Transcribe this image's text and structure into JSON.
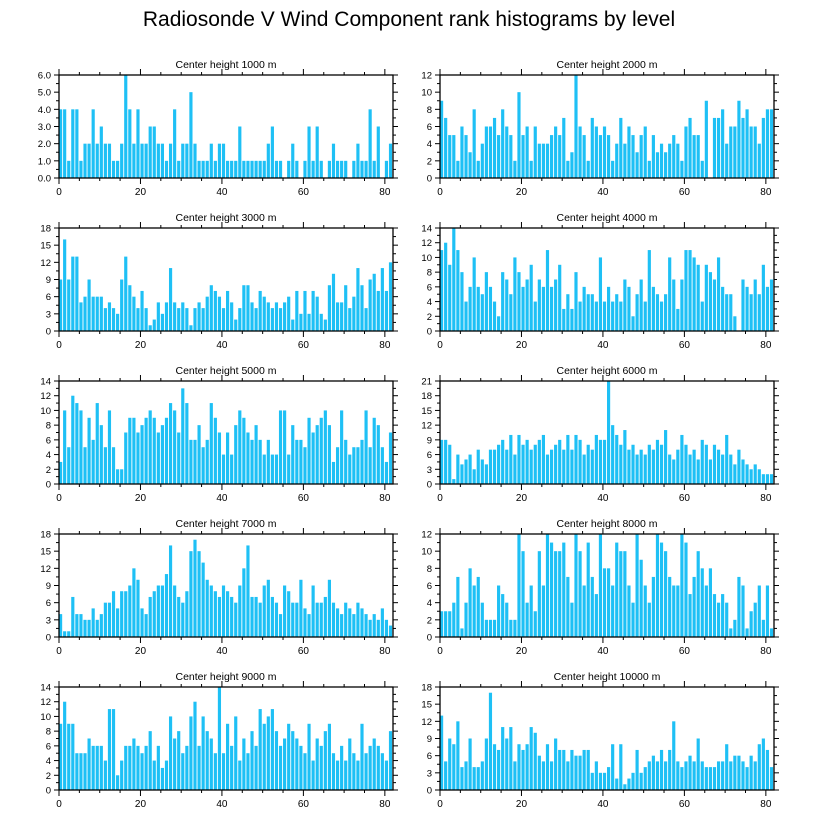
{
  "figure": {
    "title": "Radiosonde V Wind Component rank histograms by level",
    "bar_color": "#1ec0f5"
  },
  "chart_data": [
    {
      "type": "bar",
      "title": "Center height 1000 m",
      "xlim": [
        0,
        82
      ],
      "ylim": [
        0,
        6
      ],
      "xticks": [
        0,
        20,
        40,
        60,
        80
      ],
      "yticks": [
        0,
        1,
        2,
        3,
        4,
        5,
        6
      ],
      "ytick_labels": [
        "0.0",
        "1.0",
        "2.0",
        "3.0",
        "4.0",
        "5.0",
        "6.0"
      ],
      "values": [
        4,
        4,
        1,
        4,
        4,
        1,
        2,
        2,
        4,
        2,
        3,
        2,
        2,
        1,
        1,
        2,
        6,
        4,
        2,
        4,
        2,
        2,
        3,
        3,
        2,
        2,
        1,
        2,
        4,
        1,
        2,
        2,
        5,
        2,
        1,
        1,
        1,
        2,
        1,
        2,
        2,
        1,
        1,
        1,
        3,
        1,
        1,
        1,
        1,
        1,
        1,
        2,
        3,
        1,
        1,
        0,
        1,
        2,
        1,
        0,
        1,
        3,
        1,
        3,
        1,
        0,
        1,
        2,
        1,
        1,
        1,
        0,
        1,
        2,
        1,
        1,
        4,
        1,
        3,
        0,
        1,
        2
      ]
    },
    {
      "type": "bar",
      "title": "Center height 2000 m",
      "xlim": [
        0,
        82
      ],
      "ylim": [
        0,
        12
      ],
      "xticks": [
        0,
        20,
        40,
        60,
        80
      ],
      "yticks": [
        0,
        2,
        4,
        6,
        8,
        10,
        12
      ],
      "ytick_labels": [
        "0",
        "2",
        "4",
        "6",
        "8",
        "10",
        "12"
      ],
      "values": [
        9,
        7,
        5,
        5,
        2,
        6,
        5,
        3,
        8,
        2,
        4,
        6,
        6,
        7,
        5,
        8,
        6,
        5,
        2,
        10,
        5,
        6,
        2,
        6,
        4,
        4,
        4,
        5,
        6,
        5,
        7,
        2,
        3,
        12,
        6,
        5,
        2,
        7,
        6,
        5,
        6,
        5,
        2,
        4,
        7,
        4,
        6,
        5,
        3,
        5,
        6,
        2,
        5,
        3,
        4,
        3,
        4,
        5,
        4,
        2,
        6,
        7,
        5,
        5,
        2,
        9,
        0,
        7,
        7,
        8,
        4,
        6,
        6,
        9,
        7,
        8,
        6,
        6,
        4,
        7,
        8,
        8
      ]
    },
    {
      "type": "bar",
      "title": "Center height 3000 m",
      "xlim": [
        0,
        82
      ],
      "ylim": [
        0,
        18
      ],
      "xticks": [
        0,
        20,
        40,
        60,
        80
      ],
      "yticks": [
        0,
        3,
        6,
        9,
        12,
        15,
        18
      ],
      "ytick_labels": [
        "0",
        "3",
        "6",
        "9",
        "12",
        "15",
        "18"
      ],
      "values": [
        9,
        16,
        9,
        13,
        13,
        5,
        6,
        9,
        6,
        6,
        6,
        4,
        5,
        4,
        3,
        9,
        13,
        8,
        6,
        4,
        7,
        4,
        1,
        2,
        5,
        3,
        5,
        11,
        5,
        4,
        5,
        4,
        1,
        4,
        5,
        4,
        6,
        8,
        7,
        6,
        4,
        7,
        5,
        2,
        4,
        8,
        8,
        5,
        4,
        7,
        6,
        5,
        4,
        5,
        4,
        5,
        6,
        2,
        7,
        3,
        7,
        3,
        7,
        6,
        3,
        2,
        8,
        10,
        5,
        5,
        8,
        4,
        6,
        11,
        8,
        4,
        9,
        10,
        7,
        11,
        7,
        12
      ]
    },
    {
      "type": "bar",
      "title": "Center height 4000 m",
      "xlim": [
        0,
        82
      ],
      "ylim": [
        0,
        14
      ],
      "xticks": [
        0,
        20,
        40,
        60,
        80
      ],
      "yticks": [
        0,
        2,
        4,
        6,
        8,
        10,
        12,
        14
      ],
      "ytick_labels": [
        "0",
        "2",
        "4",
        "6",
        "8",
        "10",
        "12",
        "14"
      ],
      "values": [
        11,
        12,
        9,
        14,
        11,
        8,
        4,
        6,
        10,
        6,
        5,
        8,
        6,
        4,
        2,
        8,
        7,
        5,
        10,
        8,
        6,
        7,
        9,
        4,
        7,
        6,
        11,
        6,
        7,
        9,
        3,
        5,
        3,
        8,
        4,
        6,
        5,
        5,
        4,
        10,
        4,
        6,
        4,
        5,
        4,
        7,
        6,
        2,
        5,
        7,
        4,
        11,
        6,
        5,
        4,
        5,
        10,
        7,
        3,
        7,
        11,
        11,
        10,
        9,
        4,
        9,
        8,
        7,
        10,
        6,
        5,
        5,
        2,
        0,
        7,
        6,
        5,
        7,
        5,
        9,
        6,
        7
      ]
    },
    {
      "type": "bar",
      "title": "Center height 5000 m",
      "xlim": [
        0,
        82
      ],
      "ylim": [
        0,
        14
      ],
      "xticks": [
        0,
        20,
        40,
        60,
        80
      ],
      "yticks": [
        0,
        2,
        4,
        6,
        8,
        10,
        12,
        14
      ],
      "ytick_labels": [
        "0",
        "2",
        "4",
        "6",
        "8",
        "10",
        "12",
        "14"
      ],
      "values": [
        3,
        10,
        5,
        12,
        11,
        10,
        5,
        9,
        6,
        11,
        8,
        5,
        10,
        5,
        2,
        2,
        7,
        9,
        9,
        7,
        8,
        9,
        10,
        9,
        7,
        8,
        9,
        11,
        10,
        7,
        13,
        11,
        6,
        6,
        8,
        5,
        6,
        11,
        9,
        7,
        4,
        7,
        4,
        8,
        10,
        9,
        7,
        6,
        8,
        6,
        4,
        6,
        4,
        4,
        10,
        10,
        4,
        8,
        6,
        6,
        5,
        9,
        7,
        8,
        9,
        10,
        8,
        3,
        5,
        10,
        6,
        4,
        5,
        5,
        6,
        10,
        5,
        9,
        8,
        5,
        3,
        7
      ]
    },
    {
      "type": "bar",
      "title": "Center height 6000 m",
      "xlim": [
        0,
        82
      ],
      "ylim": [
        0,
        21
      ],
      "xticks": [
        0,
        20,
        40,
        60,
        80
      ],
      "yticks": [
        0,
        3,
        6,
        9,
        12,
        15,
        18,
        21
      ],
      "ytick_labels": [
        "0",
        "3",
        "6",
        "9",
        "12",
        "15",
        "18",
        "21"
      ],
      "values": [
        9,
        9,
        8,
        1,
        6,
        4,
        5,
        6,
        3,
        7,
        5,
        4,
        7,
        7,
        8,
        9,
        7,
        10,
        6,
        10,
        8,
        9,
        7,
        8,
        9,
        10,
        6,
        7,
        8,
        9,
        7,
        10,
        7,
        10,
        9,
        6,
        8,
        7,
        10,
        9,
        9,
        21,
        12,
        10,
        8,
        11,
        7,
        8,
        6,
        7,
        6,
        8,
        7,
        9,
        8,
        11,
        6,
        5,
        7,
        10,
        8,
        6,
        7,
        5,
        9,
        8,
        5,
        8,
        7,
        6,
        10,
        6,
        4,
        7,
        5,
        4,
        3,
        4,
        3,
        2,
        2,
        2
      ]
    },
    {
      "type": "bar",
      "title": "Center height 7000 m",
      "xlim": [
        0,
        82
      ],
      "ylim": [
        0,
        18
      ],
      "xticks": [
        0,
        20,
        40,
        60,
        80
      ],
      "yticks": [
        0,
        3,
        6,
        9,
        12,
        15,
        18
      ],
      "ytick_labels": [
        "0",
        "3",
        "6",
        "9",
        "12",
        "15",
        "18"
      ],
      "values": [
        4,
        1,
        1,
        7,
        4,
        4,
        3,
        3,
        5,
        3,
        4,
        6,
        6,
        8,
        5,
        8,
        8,
        9,
        12,
        10,
        5,
        4,
        7,
        8,
        9,
        9,
        11,
        16,
        9,
        7,
        6,
        8,
        15,
        17,
        15,
        13,
        10,
        9,
        8,
        7,
        9,
        8,
        7,
        6,
        9,
        12,
        16,
        7,
        7,
        6,
        9,
        10,
        7,
        6,
        4,
        9,
        8,
        6,
        6,
        10,
        5,
        4,
        9,
        6,
        6,
        7,
        10,
        6,
        5,
        4,
        6,
        5,
        4,
        6,
        5,
        4,
        3,
        4,
        3,
        5,
        3,
        2
      ]
    },
    {
      "type": "bar",
      "title": "Center height 8000 m",
      "xlim": [
        0,
        82
      ],
      "ylim": [
        0,
        12
      ],
      "xticks": [
        0,
        20,
        40,
        60,
        80
      ],
      "yticks": [
        0,
        2,
        4,
        6,
        8,
        10,
        12
      ],
      "ytick_labels": [
        "0",
        "2",
        "4",
        "6",
        "8",
        "10",
        "12"
      ],
      "values": [
        3,
        3,
        3,
        4,
        7,
        1,
        4,
        8,
        6,
        7,
        4,
        2,
        2,
        2,
        6,
        5,
        4,
        2,
        2,
        12,
        10,
        4,
        6,
        3,
        10,
        6,
        12,
        11,
        10,
        10,
        11,
        7,
        4,
        12,
        10,
        6,
        11,
        7,
        5,
        12,
        8,
        8,
        6,
        11,
        10,
        10,
        6,
        4,
        12,
        9,
        6,
        4,
        7,
        12,
        11,
        10,
        7,
        6,
        6,
        12,
        11,
        5,
        7,
        10,
        8,
        6,
        8,
        5,
        4,
        5,
        4,
        1,
        2,
        7,
        6,
        1,
        3,
        4,
        6,
        2,
        6,
        1
      ]
    },
    {
      "type": "bar",
      "title": "Center height 9000 m",
      "xlim": [
        0,
        82
      ],
      "ylim": [
        0,
        14
      ],
      "xticks": [
        0,
        20,
        40,
        60,
        80
      ],
      "yticks": [
        0,
        2,
        4,
        6,
        8,
        10,
        12,
        14
      ],
      "ytick_labels": [
        "0",
        "2",
        "4",
        "6",
        "8",
        "10",
        "12",
        "14"
      ],
      "values": [
        9,
        12,
        9,
        9,
        5,
        5,
        5,
        7,
        6,
        6,
        6,
        4,
        11,
        11,
        2,
        4,
        6,
        6,
        7,
        6,
        5,
        6,
        8,
        4,
        6,
        3,
        4,
        10,
        7,
        8,
        5,
        6,
        10,
        12,
        6,
        10,
        8,
        7,
        5,
        14,
        5,
        9,
        6,
        10,
        4,
        7,
        5,
        8,
        6,
        11,
        9,
        10,
        11,
        8,
        6,
        7,
        9,
        8,
        7,
        6,
        5,
        9,
        4,
        7,
        6,
        8,
        9,
        5,
        4,
        6,
        4,
        7,
        5,
        4,
        9,
        5,
        6,
        7,
        6,
        5,
        4,
        8
      ]
    },
    {
      "type": "bar",
      "title": "Center height 10000 m",
      "xlim": [
        0,
        82
      ],
      "ylim": [
        0,
        18
      ],
      "xticks": [
        0,
        20,
        40,
        60,
        80
      ],
      "yticks": [
        0,
        3,
        6,
        9,
        12,
        15,
        18
      ],
      "ytick_labels": [
        "0",
        "3",
        "6",
        "9",
        "12",
        "15",
        "18"
      ],
      "values": [
        13,
        5,
        9,
        8,
        12,
        4,
        5,
        9,
        4,
        4,
        5,
        9,
        17,
        8,
        7,
        11,
        9,
        11,
        5,
        8,
        7,
        8,
        11,
        10,
        6,
        5,
        8,
        5,
        9,
        7,
        7,
        5,
        7,
        6,
        6,
        7,
        7,
        3,
        5,
        3,
        3,
        4,
        8,
        2,
        8,
        1,
        2,
        3,
        7,
        3,
        4,
        5,
        6,
        5,
        7,
        5,
        7,
        12,
        5,
        4,
        5,
        6,
        5,
        9,
        5,
        4,
        4,
        4,
        5,
        5,
        8,
        5,
        6,
        6,
        5,
        4,
        6,
        5,
        8,
        9,
        7,
        4
      ]
    }
  ]
}
